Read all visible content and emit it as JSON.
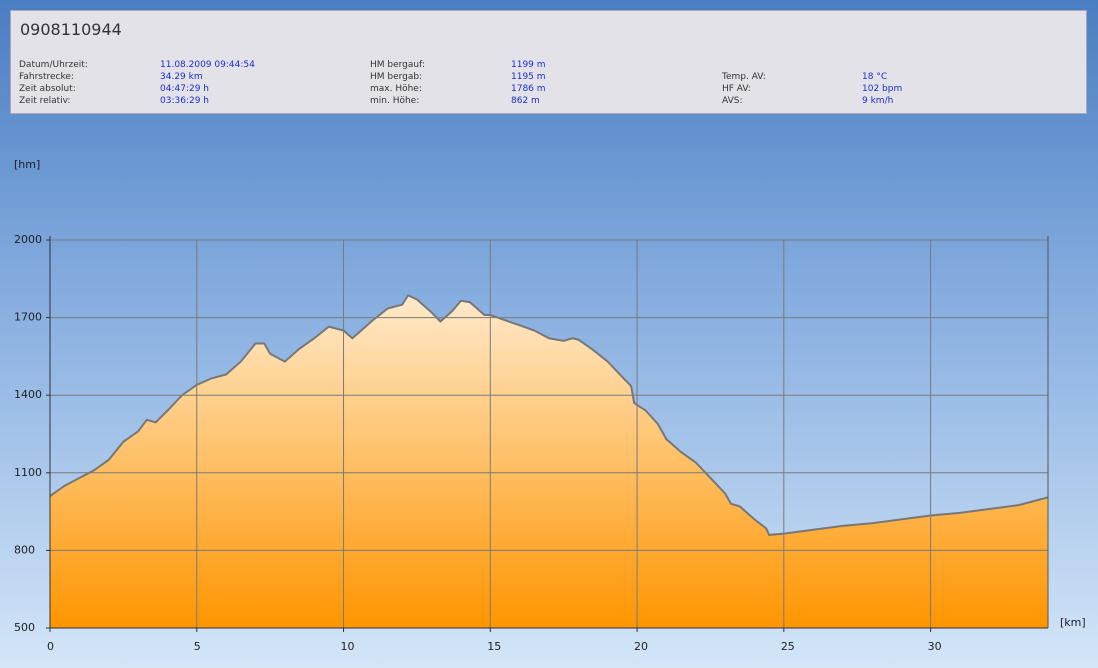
{
  "header": {
    "title": "0908110944",
    "stats": [
      [
        {
          "label": "Datum/Uhrzeit:",
          "value": "11.08.2009 09:44:54"
        },
        {
          "label": "Fahrstrecke:",
          "value": "34.29 km"
        },
        {
          "label": "Zeit absolut:",
          "value": "04:47:29 h"
        },
        {
          "label": "Zeit relativ:",
          "value": "03:36:29 h"
        }
      ],
      [
        {
          "label": "HM bergauf:",
          "value": "1199 m"
        },
        {
          "label": "HM bergab:",
          "value": "1195 m"
        },
        {
          "label": "max. Höhe:",
          "value": "1786 m"
        },
        {
          "label": "min. Höhe:",
          "value": "862 m"
        }
      ],
      [
        {
          "label": "Temp. AV:",
          "value": "18 °C"
        },
        {
          "label": "HF AV:",
          "value": "102 bpm"
        },
        {
          "label": "AVS:",
          "value": "9 km/h"
        }
      ]
    ]
  },
  "chart_data": {
    "type": "area",
    "xlabel": "[km]",
    "ylabel": "[hm]",
    "x": [
      0,
      0.5,
      1,
      1.5,
      2,
      2.5,
      3,
      3.3,
      3.6,
      4,
      4.5,
      5,
      5.5,
      6,
      6.5,
      7,
      7.3,
      7.5,
      8,
      8.5,
      9,
      9.5,
      10,
      10.3,
      10.7,
      11,
      11.5,
      12,
      12.2,
      12.5,
      13,
      13.3,
      13.7,
      14,
      14.3,
      14.8,
      15,
      15.5,
      16,
      16.5,
      17,
      17.5,
      17.8,
      18,
      18.5,
      19,
      19.5,
      19.8,
      19.9,
      20.3,
      20.7,
      21,
      21.5,
      22,
      22.5,
      23,
      23.2,
      23.5,
      24,
      24.4,
      24.5,
      25,
      26,
      27,
      28,
      29,
      30,
      31,
      32,
      33,
      34
    ],
    "values": [
      1010,
      1050,
      1080,
      1110,
      1150,
      1220,
      1260,
      1305,
      1295,
      1340,
      1400,
      1440,
      1465,
      1480,
      1530,
      1600,
      1600,
      1560,
      1530,
      1580,
      1620,
      1665,
      1650,
      1620,
      1660,
      1690,
      1735,
      1750,
      1786,
      1770,
      1720,
      1685,
      1725,
      1765,
      1760,
      1710,
      1710,
      1690,
      1670,
      1650,
      1620,
      1610,
      1620,
      1615,
      1575,
      1530,
      1470,
      1435,
      1370,
      1340,
      1290,
      1230,
      1180,
      1140,
      1080,
      1020,
      980,
      970,
      920,
      885,
      860,
      865,
      880,
      895,
      905,
      920,
      935,
      945,
      960,
      975,
      1005
    ],
    "xlim": [
      0,
      34
    ],
    "ylim": [
      500,
      2000
    ],
    "xticks": [
      0,
      5,
      10,
      15,
      20,
      25,
      30
    ],
    "yticks": [
      500,
      800,
      1100,
      1400,
      1700,
      2000
    ],
    "grid": true,
    "line_color": "#777777",
    "fill_top": "#fff8ee",
    "fill_bottom": "#ff9500"
  }
}
